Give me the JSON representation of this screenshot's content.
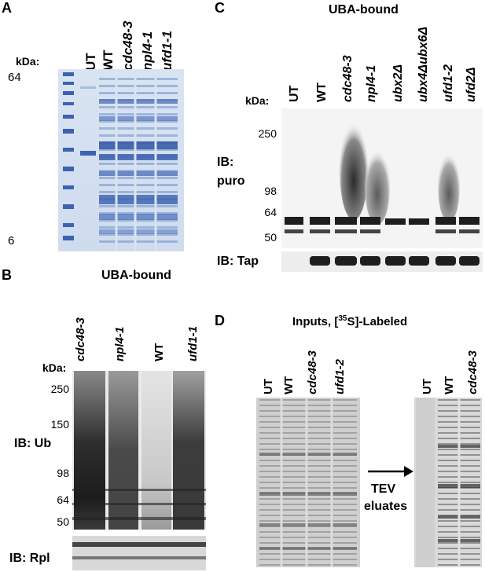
{
  "panelA": {
    "letter": "A",
    "kda": "kDa:",
    "markers": [
      "64",
      "6"
    ],
    "lanes": [
      "UT",
      "WT",
      "cdc48-3",
      "npl4-1",
      "ufd1-1"
    ]
  },
  "panelB": {
    "letter": "B",
    "title": "UBA-bound",
    "kda": "kDa:",
    "markers": [
      "250",
      "150",
      "98",
      "64",
      "50"
    ],
    "lanes": [
      "cdc48-3",
      "npl4-1",
      "WT",
      "ufd1-1"
    ],
    "ib_main": "IB: Ub",
    "ib_lower": "IB: Rpl"
  },
  "panelC": {
    "letter": "C",
    "title": "UBA-bound",
    "kda": "kDa:",
    "markers": [
      "250",
      "98",
      "64",
      "50"
    ],
    "lanes": [
      "UT",
      "WT",
      "cdc48-3",
      "npl4-1",
      "ubx2Δ",
      "ubx4Δubx6Δ",
      "ufd1-2",
      "ufd2Δ"
    ],
    "ib_main_line1": "IB:",
    "ib_main_line2": "puro",
    "ib_lower": "IB: Tap"
  },
  "panelD": {
    "letter": "D",
    "title_prefix": "Inputs, [",
    "title_sup": "35",
    "title_suffix": "S]-Labeled",
    "lanes_left": [
      "UT",
      "WT",
      "cdc48-3",
      "ufd1-2"
    ],
    "lanes_right": [
      "UT",
      "WT",
      "cdc48-3"
    ],
    "arrow_label_line1": "TEV",
    "arrow_label_line2": "eluates"
  }
}
